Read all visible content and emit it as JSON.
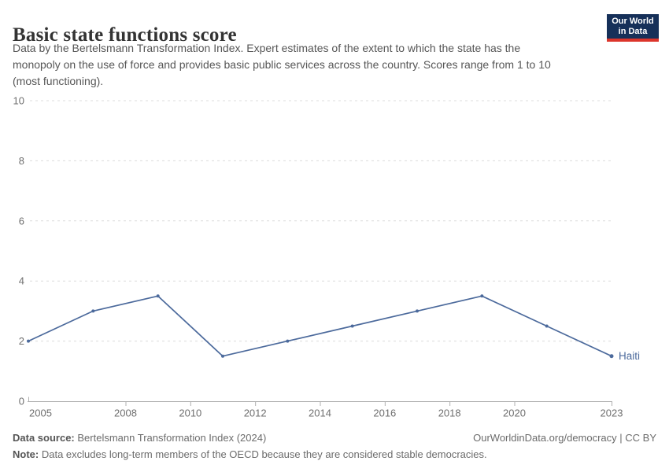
{
  "header": {
    "title": "Basic state functions score",
    "subtitle_lines": [
      "Data by the Bertelsmann Transformation Index. Expert estimates of the extent to which the state has the",
      "monopoly on the use of force and provides basic public services across the country. Scores range from 1 to 10",
      "(most functioning)."
    ],
    "logo_line1": "Our World",
    "logo_line2": "in Data",
    "logo_bg_color": "#163059",
    "logo_accent_color": "#dc352b"
  },
  "chart_data": {
    "type": "line",
    "title": "Basic state functions score",
    "xlabel": "",
    "ylabel": "",
    "xlim": [
      2005,
      2023
    ],
    "ylim": [
      0,
      10
    ],
    "x_ticks": [
      2005,
      2008,
      2010,
      2012,
      2014,
      2016,
      2018,
      2020,
      2023
    ],
    "y_ticks": [
      0,
      2,
      4,
      6,
      8,
      10
    ],
    "grid": "horizontal-dashed",
    "legend_position": "end-of-line-label",
    "series": [
      {
        "name": "Haiti",
        "color": "#4c6a9c",
        "x": [
          2005,
          2007,
          2009,
          2011,
          2013,
          2015,
          2017,
          2019,
          2021,
          2023
        ],
        "values": [
          2,
          3,
          3.5,
          1.5,
          2,
          2.5,
          3,
          3.5,
          2.5,
          1.5
        ]
      }
    ]
  },
  "footer": {
    "source_label": "Data source:",
    "source_text": "Bertelsmann Transformation Index (2024)",
    "url_text": "OurWorldinData.org/democracy | CC BY",
    "note_label": "Note:",
    "note_text": "Data excludes long-term members of the OECD because they are considered stable democracies."
  }
}
